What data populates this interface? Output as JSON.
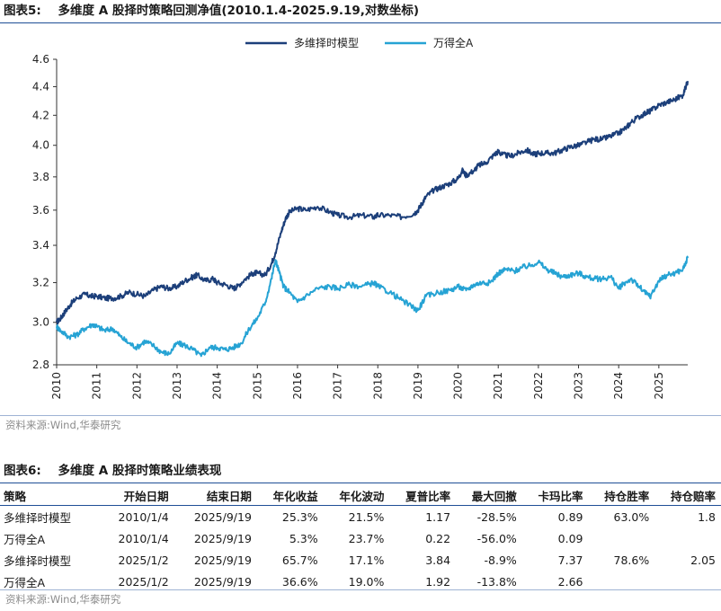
{
  "figure1": {
    "label": "图表5:",
    "title": "多维度 A 股择时策略回测净值(2010.1.4-2025.9.19,对数坐标)",
    "source": "资料来源:Wind,华泰研究"
  },
  "figure2": {
    "label": "图表6:",
    "title": "多维度 A 股择时策略业绩表现",
    "source": "资料来源:Wind,华泰研究"
  },
  "chart_data": {
    "type": "line",
    "title": "多维度 A 股择时策略回测净值(2010.1.4-2025.9.19,对数坐标)",
    "xlabel": "",
    "ylabel": "",
    "y_scale": "log",
    "xlim": [
      2010,
      2025.72
    ],
    "ylim": [
      2.8,
      4.6
    ],
    "y_ticks": [
      "2.8",
      "3.0",
      "3.2",
      "3.4",
      "3.6",
      "3.8",
      "4.0",
      "4.2",
      "4.4",
      "4.6"
    ],
    "x_ticks": [
      "2010",
      "2011",
      "2012",
      "2013",
      "2014",
      "2015",
      "2016",
      "2017",
      "2018",
      "2019",
      "2020",
      "2021",
      "2022",
      "2023",
      "2024",
      "2025"
    ],
    "grid": false,
    "legend_position": "top-center",
    "series": [
      {
        "name": "多维择时模型",
        "color": "#1c3f7a",
        "x": [
          2010.0,
          2010.1,
          2010.2,
          2010.35,
          2010.5,
          2010.7,
          2010.85,
          2011.0,
          2011.2,
          2011.4,
          2011.6,
          2011.8,
          2012.0,
          2012.2,
          2012.4,
          2012.6,
          2012.8,
          2013.0,
          2013.2,
          2013.4,
          2013.5,
          2013.7,
          2013.9,
          2014.0,
          2014.2,
          2014.4,
          2014.5,
          2014.7,
          2014.9,
          2015.0,
          2015.2,
          2015.35,
          2015.45,
          2015.6,
          2015.7,
          2015.8,
          2016.0,
          2016.2,
          2016.5,
          2016.8,
          2017.0,
          2017.3,
          2017.6,
          2017.9,
          2018.0,
          2018.3,
          2018.6,
          2018.9,
          2019.0,
          2019.1,
          2019.2,
          2019.4,
          2019.6,
          2019.8,
          2020.0,
          2020.1,
          2020.2,
          2020.4,
          2020.5,
          2020.7,
          2020.9,
          2021.0,
          2021.1,
          2021.3,
          2021.5,
          2021.7,
          2021.9,
          2022.0,
          2022.2,
          2022.4,
          2022.6,
          2022.8,
          2023.0,
          2023.2,
          2023.4,
          2023.6,
          2023.8,
          2024.0,
          2024.2,
          2024.3,
          2024.5,
          2024.7,
          2024.8,
          2025.0,
          2025.2,
          2025.4,
          2025.6,
          2025.72
        ],
        "y": [
          3.0,
          3.02,
          3.05,
          3.09,
          3.12,
          3.14,
          3.13,
          3.13,
          3.12,
          3.12,
          3.13,
          3.15,
          3.14,
          3.13,
          3.16,
          3.18,
          3.17,
          3.18,
          3.21,
          3.23,
          3.24,
          3.21,
          3.22,
          3.2,
          3.19,
          3.17,
          3.18,
          3.22,
          3.25,
          3.25,
          3.24,
          3.3,
          3.36,
          3.48,
          3.55,
          3.59,
          3.61,
          3.6,
          3.62,
          3.59,
          3.57,
          3.56,
          3.57,
          3.56,
          3.57,
          3.57,
          3.56,
          3.58,
          3.6,
          3.64,
          3.68,
          3.72,
          3.74,
          3.76,
          3.79,
          3.84,
          3.81,
          3.84,
          3.87,
          3.89,
          3.94,
          3.96,
          3.94,
          3.93,
          3.95,
          3.97,
          3.94,
          3.95,
          3.95,
          3.95,
          3.97,
          3.99,
          4.0,
          4.02,
          4.04,
          4.04,
          4.06,
          4.08,
          4.12,
          4.15,
          4.19,
          4.22,
          4.23,
          4.27,
          4.29,
          4.31,
          4.34,
          4.44
        ]
      },
      {
        "name": "万得全A",
        "color": "#26a3d4",
        "x": [
          2010.0,
          2010.1,
          2010.3,
          2010.5,
          2010.7,
          2010.9,
          2011.0,
          2011.2,
          2011.4,
          2011.6,
          2011.8,
          2012.0,
          2012.2,
          2012.4,
          2012.6,
          2012.8,
          2013.0,
          2013.2,
          2013.4,
          2013.6,
          2013.8,
          2014.0,
          2014.2,
          2014.4,
          2014.6,
          2014.8,
          2015.0,
          2015.2,
          2015.35,
          2015.45,
          2015.55,
          2015.65,
          2015.8,
          2016.0,
          2016.2,
          2016.5,
          2016.8,
          2017.0,
          2017.3,
          2017.6,
          2017.9,
          2018.0,
          2018.3,
          2018.6,
          2018.9,
          2019.0,
          2019.2,
          2019.5,
          2019.8,
          2020.0,
          2020.2,
          2020.4,
          2020.6,
          2020.8,
          2021.0,
          2021.2,
          2021.4,
          2021.6,
          2021.8,
          2022.0,
          2022.2,
          2022.4,
          2022.6,
          2022.8,
          2023.0,
          2023.2,
          2023.4,
          2023.6,
          2023.8,
          2024.0,
          2024.1,
          2024.3,
          2024.5,
          2024.7,
          2024.8,
          2025.0,
          2025.2,
          2025.4,
          2025.6,
          2025.72
        ],
        "y": [
          2.98,
          2.96,
          2.93,
          2.94,
          2.97,
          2.99,
          2.98,
          2.96,
          2.97,
          2.93,
          2.9,
          2.88,
          2.91,
          2.89,
          2.86,
          2.85,
          2.9,
          2.89,
          2.87,
          2.84,
          2.88,
          2.88,
          2.87,
          2.88,
          2.9,
          2.97,
          3.02,
          3.1,
          3.22,
          3.32,
          3.25,
          3.18,
          3.15,
          3.1,
          3.13,
          3.17,
          3.18,
          3.17,
          3.19,
          3.18,
          3.2,
          3.18,
          3.15,
          3.11,
          3.07,
          3.06,
          3.13,
          3.15,
          3.16,
          3.18,
          3.16,
          3.19,
          3.2,
          3.2,
          3.25,
          3.27,
          3.26,
          3.28,
          3.29,
          3.31,
          3.27,
          3.25,
          3.23,
          3.24,
          3.25,
          3.23,
          3.22,
          3.22,
          3.23,
          3.17,
          3.19,
          3.22,
          3.18,
          3.14,
          3.13,
          3.21,
          3.24,
          3.25,
          3.27,
          3.33
        ]
      }
    ]
  },
  "table": {
    "headers": [
      "策略",
      "开始日期",
      "结束日期",
      "年化收益",
      "年化波动",
      "夏普比率",
      "最大回撤",
      "卡玛比率",
      "持仓胜率",
      "持仓赔率"
    ],
    "rows": [
      [
        "多维择时模型",
        "2010/1/4",
        "2025/9/19",
        "25.3%",
        "21.5%",
        "1.17",
        "-28.5%",
        "0.89",
        "63.0%",
        "1.8"
      ],
      [
        "万得全A",
        "2010/1/4",
        "2025/9/19",
        "5.3%",
        "23.7%",
        "0.22",
        "-56.0%",
        "0.09",
        "",
        ""
      ],
      [
        "多维择时模型",
        "2025/1/2",
        "2025/9/19",
        "65.7%",
        "17.1%",
        "3.84",
        "-8.9%",
        "7.37",
        "78.6%",
        "2.05"
      ],
      [
        "万得全A",
        "2025/1/2",
        "2025/9/19",
        "36.6%",
        "19.0%",
        "1.92",
        "-13.8%",
        "2.66",
        "",
        ""
      ]
    ]
  }
}
